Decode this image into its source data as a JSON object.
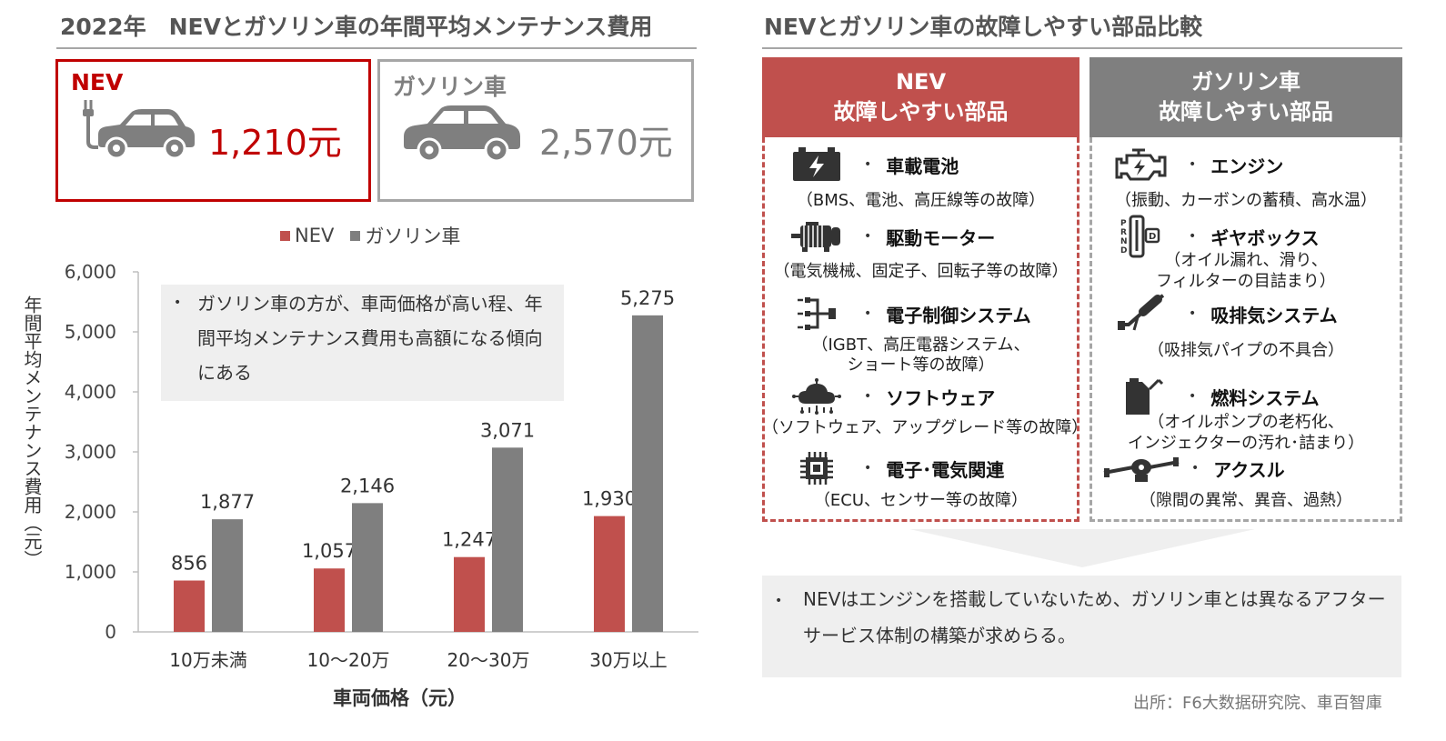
{
  "left_title": "2022年　NEVとガソリン車の年間平均メンテナンス費用",
  "right_title": "NEVとガソリン車の故障しやすい部品比較",
  "summary_cards": {
    "nev": {
      "label": "NEV",
      "value": "1,210元"
    },
    "gas": {
      "label": "ガソリン車",
      "value": "2,570元"
    }
  },
  "colors": {
    "nev": "#c0504d",
    "gas": "#7f7f7f",
    "nev_border": "#c00000",
    "gas_border": "#a6a6a6"
  },
  "chart_callout": "ガソリン車の方が、車両価格が高い程、年間平均メンテナンス費用も高額になる傾向にある",
  "chart_data": {
    "type": "bar",
    "categories": [
      "10万未満",
      "10～20万",
      "20～30万",
      "30万以上"
    ],
    "series": [
      {
        "name": "NEV",
        "values": [
          856,
          1057,
          1247,
          1930
        ]
      },
      {
        "name": "ガソリン車",
        "values": [
          1877,
          2146,
          3071,
          5275
        ]
      }
    ],
    "value_labels": {
      "NEV": [
        "856",
        "1,057",
        "1,247",
        "1,930"
      ],
      "ガソリン車": [
        "1,877",
        "2,146",
        "3,071",
        "5,275"
      ]
    },
    "xlabel": "車両価格（元）",
    "ylabel": "年間平均メンテナンス費用（元）",
    "ylim": [
      0,
      6000
    ],
    "yticks": [
      0,
      1000,
      2000,
      3000,
      4000,
      5000,
      6000
    ],
    "ytick_labels": [
      "0",
      "1,000",
      "2,000",
      "3,000",
      "4,000",
      "5,000",
      "6,000"
    ],
    "legend_position": "top-center",
    "grid": false
  },
  "nev_panel": {
    "header_line1": "NEV",
    "header_line2": "故障しやすい部品",
    "parts": [
      {
        "icon": "battery-icon",
        "name": "車載電池",
        "detail": "（BMS、電池、高圧線等の故障）"
      },
      {
        "icon": "motor-icon",
        "name": "駆動モーター",
        "detail": "（電気機械、固定子、回転子等の故障）"
      },
      {
        "icon": "circuit-icon",
        "name": "電子制御システム",
        "detail1": "（IGBT、高圧電器システム、",
        "detail2": "ショート等の故障）"
      },
      {
        "icon": "cloud-network-icon",
        "name": "ソフトウェア",
        "detail": "（ソフトウェア、アップグレード等の故障）"
      },
      {
        "icon": "chip-icon",
        "name": "電子･電気関連",
        "detail": "（ECU、センサー等の故障）"
      }
    ]
  },
  "gas_panel": {
    "header_line1": "ガソリン車",
    "header_line2": "故障しやすい部品",
    "parts": [
      {
        "icon": "engine-icon",
        "name": "エンジン",
        "detail": "（振動、カーボンの蓄積、高水温）"
      },
      {
        "icon": "gear-shift-icon",
        "name": "ギヤボックス",
        "detail1": "（オイル漏れ、滑り、",
        "detail2": "フィルターの目詰まり）"
      },
      {
        "icon": "exhaust-icon",
        "name": "吸排気システム",
        "detail": "（吸排気パイプの不具合）"
      },
      {
        "icon": "fuel-can-icon",
        "name": "燃料システム",
        "detail1": "（オイルポンプの老朽化、",
        "detail2": "インジェクターの汚れ･詰まり）"
      },
      {
        "icon": "axle-icon",
        "name": "アクスル",
        "detail": "（隙間の異常、異音、過熱）"
      }
    ]
  },
  "summary_note": "NEVはエンジンを搭載していないため、ガソリン車とは異なるアフターサービス体制の構築が求めらる。",
  "source": "出所：F6大数据研究院、車百智庫"
}
